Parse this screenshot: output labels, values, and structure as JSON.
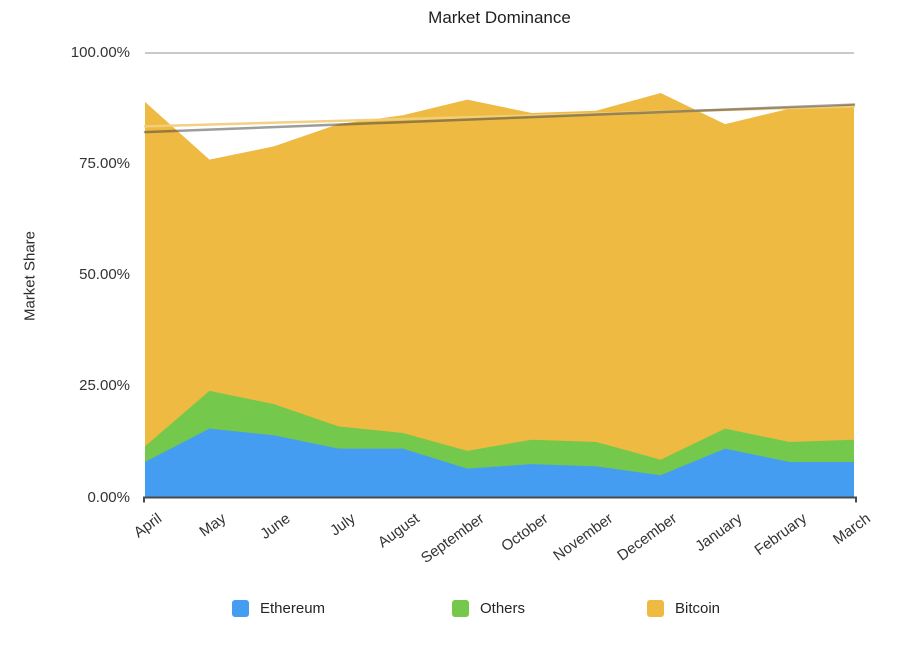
{
  "title": "Market Dominance",
  "y_axis": {
    "title": "Market Share"
  },
  "legend": {
    "position": "bottom",
    "items": [
      {
        "label": "Ethereum",
        "color": "#449df0"
      },
      {
        "label": "Others",
        "color": "#74c84c"
      },
      {
        "label": "Bitcoin",
        "color": "#eeba41"
      }
    ]
  },
  "chart_data": {
    "type": "area",
    "stacked": true,
    "title": "Market Dominance",
    "xlabel": "",
    "ylabel": "Market Share",
    "ylim": [
      0,
      100
    ],
    "grid": "top-gridline-only",
    "legend_position": "bottom",
    "x_label_rotation": -36,
    "y_ticks": [
      "100.00%",
      "75.00%",
      "50.00%",
      "25.00%",
      "0.00%"
    ],
    "categories": [
      "April",
      "May",
      "June",
      "July",
      "August",
      "September",
      "October",
      "November",
      "December",
      "January",
      "February",
      "March"
    ],
    "series": [
      {
        "name": "Ethereum",
        "color": "#449df0",
        "values": [
          8,
          15.5,
          14,
          11,
          11,
          6.5,
          7.5,
          7,
          5,
          11,
          8,
          8
        ]
      },
      {
        "name": "Others",
        "color": "#74c84c",
        "values": [
          3.5,
          8.5,
          7,
          5,
          3.5,
          4,
          5.5,
          5.5,
          3.5,
          4.5,
          4.5,
          5
        ]
      },
      {
        "name": "Bitcoin",
        "color": "#eeba41",
        "values": [
          77.5,
          52,
          58,
          68,
          71.5,
          79,
          73.5,
          74.5,
          82.5,
          68.5,
          75,
          75.5
        ]
      }
    ],
    "stacked_totals": [
      89,
      76,
      79,
      84,
      86,
      89.5,
      86.5,
      87,
      91,
      84,
      87.5,
      88.5
    ],
    "trendlines": [
      {
        "name": "bitcoin-trendline",
        "start": 83.5,
        "end": 88.0,
        "color": "#f2cf7d",
        "opacity": 0.95,
        "width": 2.5
      },
      {
        "name": "bitcoin-trendline-shadow",
        "start": 82.2,
        "end": 88.4,
        "color": "#3c3c3c",
        "opacity": 0.5,
        "width": 2.5
      }
    ],
    "colors": {
      "gridline": "#c9c9c9",
      "axis": "#4a4a4a",
      "background": "#ffffff"
    }
  }
}
